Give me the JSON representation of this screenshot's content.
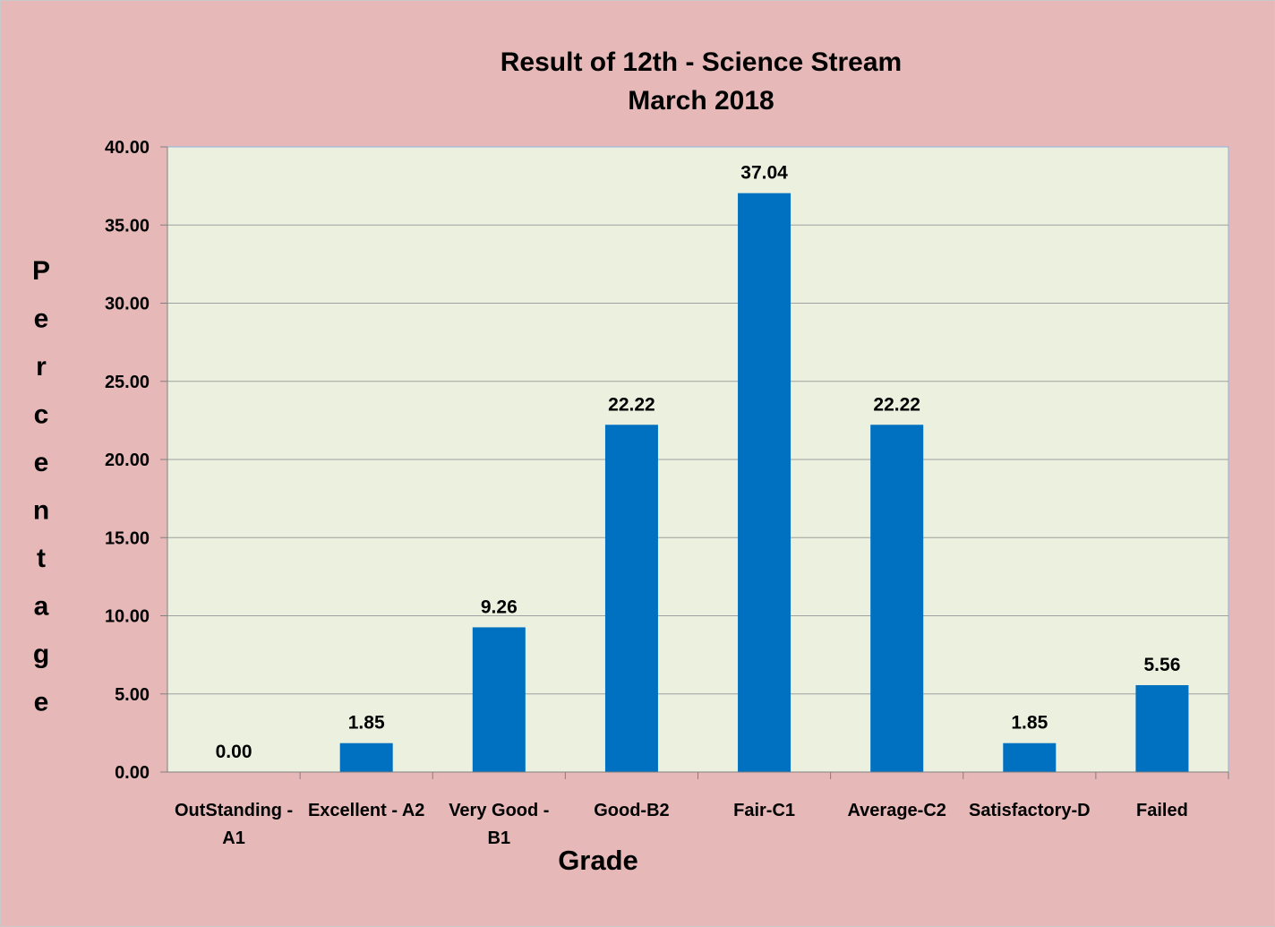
{
  "chart_data": {
    "type": "bar",
    "title_lines": [
      "Result of 12th - Science Stream",
      "March 2018"
    ],
    "xlabel": "Grade",
    "ylabel": "Percentage",
    "categories": [
      [
        "OutStanding -",
        "A1"
      ],
      [
        "Excellent - A2"
      ],
      [
        "Very Good -",
        "B1"
      ],
      [
        "Good-B2"
      ],
      [
        "Fair-C1"
      ],
      [
        "Average-C2"
      ],
      [
        "Satisfactory-D"
      ],
      [
        "Failed"
      ]
    ],
    "values": [
      0.0,
      1.85,
      9.26,
      22.22,
      37.04,
      22.22,
      1.85,
      5.56
    ],
    "data_labels": [
      "0.00",
      "1.85",
      "9.26",
      "22.22",
      "37.04",
      "22.22",
      "1.85",
      "5.56"
    ],
    "yticks": [
      "0.00",
      "5.00",
      "10.00",
      "15.00",
      "20.00",
      "25.00",
      "30.00",
      "35.00",
      "40.00"
    ],
    "ylim": [
      0,
      40
    ],
    "ystep": 5,
    "grid": true,
    "legend": "none",
    "colors": {
      "page_background": "#e6b8b7",
      "plot_background": "#ebf1de",
      "bar": "#0070c0",
      "gridline": "#a0a0a0",
      "plot_border": "#8db3e2"
    }
  }
}
